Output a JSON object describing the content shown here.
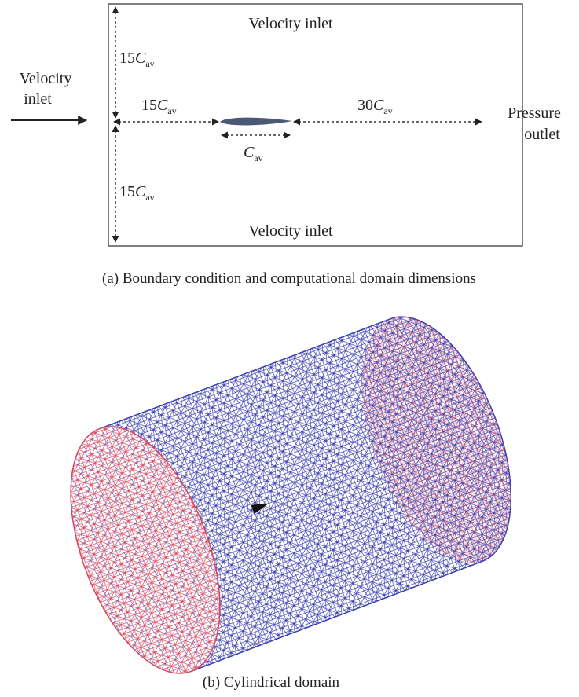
{
  "panel_a": {
    "top_label": "Velocity inlet",
    "bottom_label": "Velocity inlet",
    "inlet_label": [
      "Velocity",
      "inlet"
    ],
    "outlet_label": [
      "Pressure",
      "outlet"
    ],
    "upper_height": {
      "coef": "15",
      "symbol": "C",
      "sub": "av"
    },
    "upstream": {
      "coef": "15",
      "symbol": "C",
      "sub": "av"
    },
    "downstream": {
      "coef": "30",
      "symbol": "C",
      "sub": "av"
    },
    "chord": {
      "symbol": "C",
      "sub": "av"
    },
    "lower_height": {
      "coef": "15",
      "symbol": "C",
      "sub": "av"
    },
    "caption": "(a) Boundary condition and computational domain dimensions"
  },
  "panel_b": {
    "caption": "(b) Cylindrical domain"
  }
}
